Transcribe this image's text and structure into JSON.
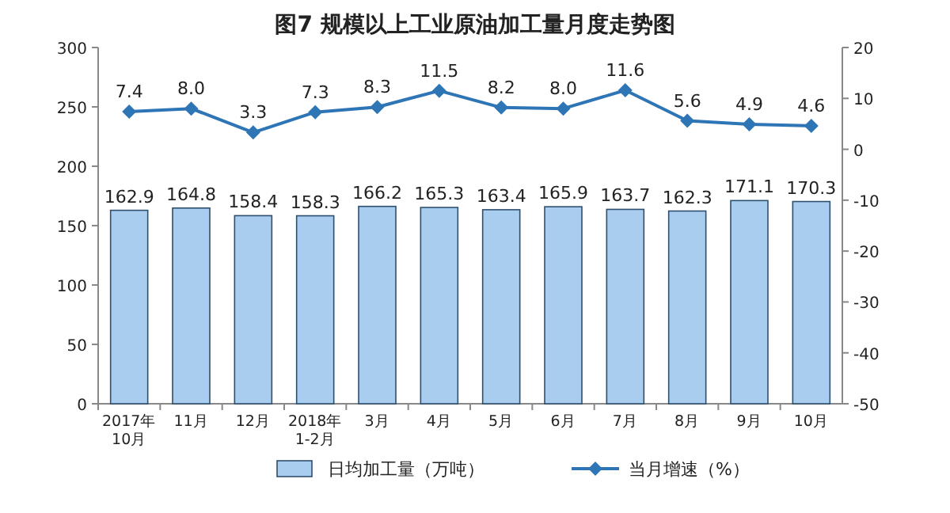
{
  "chart_data": {
    "type": "bar",
    "title": "图7  规模以上工业原油加工量月度走势图",
    "categories": [
      "2017年\n10月",
      "11月",
      "12月",
      "2018年\n1-2月",
      "3月",
      "4月",
      "5月",
      "6月",
      "7月",
      "8月",
      "9月",
      "10月"
    ],
    "series": [
      {
        "name": "日均加工量（万吨）",
        "color": "#a9cdee",
        "values": [
          162.9,
          164.8,
          158.4,
          158.3,
          166.2,
          165.3,
          163.4,
          165.9,
          163.7,
          162.3,
          171.1,
          170.3
        ]
      },
      {
        "name": "当月增速（%）",
        "type": "line",
        "axis": "y2",
        "color": "#2e75b6",
        "values": [
          7.4,
          8.0,
          3.3,
          7.3,
          8.3,
          11.5,
          8.2,
          8.0,
          11.6,
          5.6,
          4.9,
          4.6
        ],
        "value_labels": [
          "7.4",
          "8.0",
          "3.3",
          "7.3",
          "8.3",
          "11.5",
          "8.2",
          "8.0",
          "11.6",
          "5.6",
          "4.9",
          "4.6"
        ]
      }
    ],
    "ylim": [
      0,
      300
    ],
    "yticks": [
      0,
      50,
      100,
      150,
      200,
      250,
      300
    ],
    "y2lim": [
      -50,
      20
    ],
    "y2ticks": [
      -50,
      -40,
      -30,
      -20,
      -10,
      0,
      10,
      20
    ],
    "marker": "diamond",
    "data_labels": true,
    "legend": "bottom"
  }
}
